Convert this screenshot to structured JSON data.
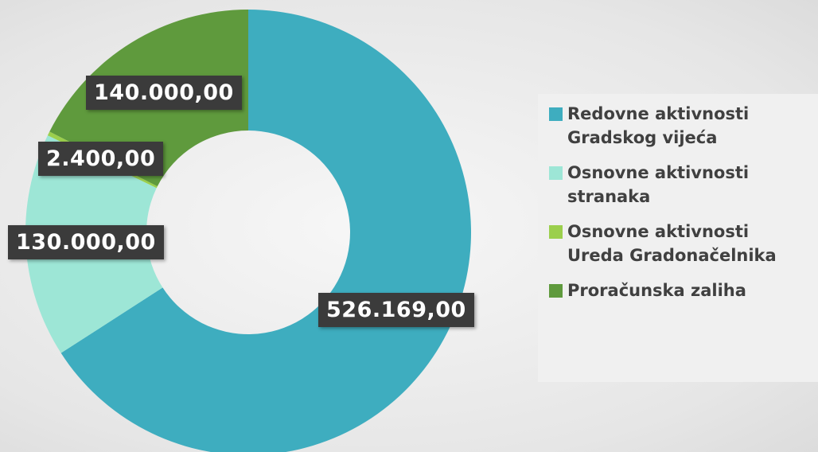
{
  "chart_data": {
    "type": "donut",
    "categories": [
      "Redovne aktivnosti Gradskog vijeća",
      "Osnovne aktivnosti stranaka",
      "Osnovne aktivnosti Ureda Gradonačelnika",
      "Proračunska zaliha"
    ],
    "values": [
      526169,
      130000,
      2400,
      140000
    ],
    "value_labels": [
      "526.169,00",
      "130.000,00",
      "2.400,00",
      "140.000,00"
    ],
    "colors": [
      "#3eadbf",
      "#9de6d6",
      "#9bcf4c",
      "#5f9a3d"
    ],
    "legend": "right"
  }
}
